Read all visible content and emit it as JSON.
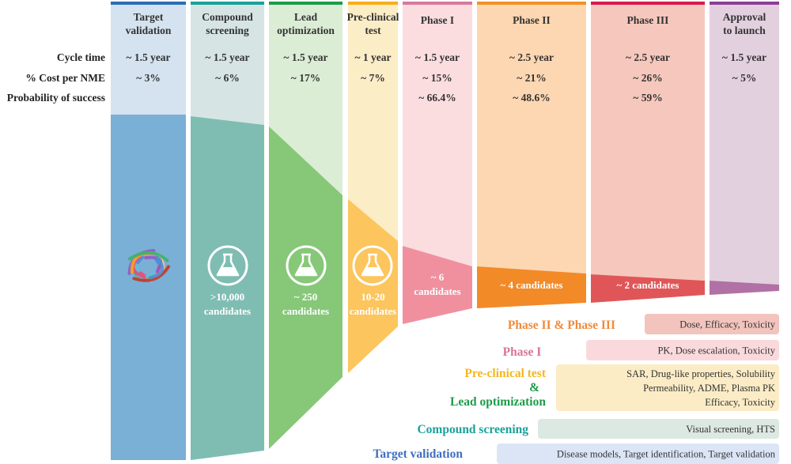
{
  "row_labels": {
    "cycle_time": "Cycle time",
    "cost": "% Cost per NME",
    "probability": "Probability of success"
  },
  "stages": [
    {
      "title": [
        "Target",
        "validation"
      ],
      "cycle_time": "~ 1.5 year",
      "cost": "~ 3%",
      "probability": "",
      "candidates": [],
      "colors": {
        "bar": "#2b6cb5",
        "light": "#d4e3ef",
        "dark": "#7aafd6"
      },
      "icon": "protein-structure-icon"
    },
    {
      "title": [
        "Compound",
        "screening"
      ],
      "cycle_time": "~ 1.5 year",
      "cost": "~ 6%",
      "probability": "",
      "candidates": [
        ">10,000",
        "candidates"
      ],
      "colors": {
        "bar": "#1aa29a",
        "light": "#d6e5e3",
        "dark": "#7fbdb3"
      },
      "icon": "flask-icon"
    },
    {
      "title": [
        "Lead",
        "optimization"
      ],
      "cycle_time": "~ 1.5 year",
      "cost": "~ 17%",
      "probability": "",
      "candidates": [
        "~ 250",
        "candidates"
      ],
      "colors": {
        "bar": "#1e9b48",
        "light": "#dcedd6",
        "dark": "#86c878"
      },
      "icon": "flask-icon"
    },
    {
      "title": [
        "Pre-clinical",
        "test"
      ],
      "cycle_time": "~ 1 year",
      "cost": "~ 7%",
      "probability": "",
      "candidates": [
        "10-20",
        "candidates"
      ],
      "colors": {
        "bar": "#f8ae1a",
        "light": "#fbedc6",
        "dark": "#fcc55d"
      },
      "icon": "flask-icon"
    },
    {
      "title": [
        "Phase I"
      ],
      "cycle_time": "~ 1.5 year",
      "cost": "~ 15%",
      "probability": "~ 66.4%",
      "candidates": [
        "~ 6",
        "candidates"
      ],
      "colors": {
        "bar": "#d9799b",
        "light": "#fbdde0",
        "dark": "#f0909f"
      }
    },
    {
      "title": [
        "Phase II"
      ],
      "cycle_time": "~ 2.5 year",
      "cost": "~ 21%",
      "probability": "~ 48.6%",
      "candidates": [
        "~ 4 candidates"
      ],
      "colors": {
        "bar": "#f39226",
        "light": "#fdd7b2",
        "dark": "#f28a28"
      }
    },
    {
      "title": [
        "Phase III"
      ],
      "cycle_time": "~ 2.5 year",
      "cost": "~ 26%",
      "probability": "~ 59%",
      "candidates": [
        "~ 2 candidates"
      ],
      "colors": {
        "bar": "#d81c4a",
        "light": "#f6c8bd",
        "dark": "#e05658"
      }
    },
    {
      "title": [
        "Approval",
        "to launch"
      ],
      "cycle_time": "~ 1.5 year",
      "cost": "~ 5%",
      "probability": "",
      "candidates": [],
      "colors": {
        "bar": "#8c3d97",
        "light": "#e3d0df",
        "dark": "#b171a5"
      }
    }
  ],
  "legend": [
    {
      "label": [
        "Phase II & Phase III"
      ],
      "label_colors": [
        "#f08a3c"
      ],
      "details": [
        "Dose, Efficacy, Toxicity"
      ],
      "box_color": "#f2c4bd"
    },
    {
      "label": [
        "Phase I"
      ],
      "label_colors": [
        "#d9739a"
      ],
      "details": [
        "PK, Dose escalation, Toxicity"
      ],
      "box_color": "#fad9dc"
    },
    {
      "label": [
        "Pre-clinical test",
        "&",
        "Lead optimization"
      ],
      "label_colors": [
        "#f5b71d",
        "#1e9b48",
        "#1e9b48"
      ],
      "details": [
        "SAR, Drug-like properties, Solubility",
        "Permeability, ADME, Plasma PK",
        "Efficacy, Toxicity"
      ],
      "box_color": "#fbecc6"
    },
    {
      "label": [
        "Compound screening"
      ],
      "label_colors": [
        "#1aa29a"
      ],
      "details": [
        "Visual screening, HTS"
      ],
      "box_color": "#dce8e2"
    },
    {
      "label": [
        "Target validation"
      ],
      "label_colors": [
        "#3f6fbf"
      ],
      "details": [
        "Disease models, Target identification, Target validation"
      ],
      "box_color": "#dbe5f6"
    }
  ]
}
